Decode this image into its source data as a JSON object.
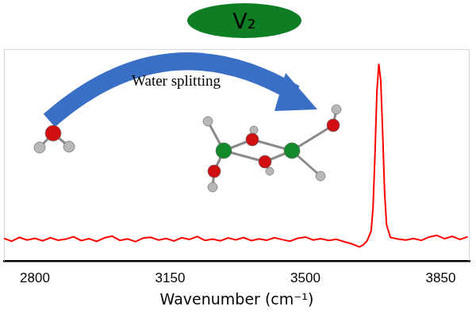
{
  "chart_data": {
    "type": "line",
    "xlabel": "Wavenumber (cm⁻¹)",
    "annotations": [
      "V₂",
      "Water splitting"
    ],
    "x": [
      2720,
      2740,
      2760,
      2780,
      2800,
      2820,
      2840,
      2860,
      2880,
      2900,
      2920,
      2940,
      2960,
      2980,
      3000,
      3020,
      3040,
      3060,
      3080,
      3100,
      3120,
      3140,
      3160,
      3180,
      3200,
      3220,
      3240,
      3260,
      3280,
      3300,
      3320,
      3340,
      3360,
      3380,
      3400,
      3420,
      3440,
      3460,
      3480,
      3500,
      3520,
      3540,
      3560,
      3580,
      3600,
      3620,
      3640,
      3650,
      3660,
      3670,
      3675,
      3680,
      3685,
      3690,
      3695,
      3700,
      3705,
      3710,
      3720,
      3740,
      3760,
      3780,
      3800,
      3820,
      3840,
      3860,
      3880,
      3900,
      3920
    ],
    "values": [
      10.5,
      9.2,
      11.0,
      9.8,
      10.6,
      9.4,
      10.9,
      9.7,
      10.2,
      11.3,
      9.5,
      10.4,
      9.1,
      10.8,
      11.6,
      9.6,
      10.3,
      9.0,
      10.7,
      11.1,
      9.8,
      10.5,
      9.3,
      10.9,
      10.1,
      11.4,
      9.6,
      10.2,
      9.4,
      10.8,
      9.9,
      11.0,
      9.5,
      10.3,
      9.7,
      10.9,
      10.0,
      9.2,
      10.6,
      11.2,
      9.8,
      10.4,
      9.6,
      10.1,
      9.0,
      8.0,
      6.5,
      7.5,
      9.5,
      14,
      25,
      50,
      80,
      93,
      85,
      60,
      32,
      17,
      11,
      10.2,
      9.8,
      10.5,
      9.6,
      11.2,
      12.0,
      10.4,
      11.5,
      10.1,
      11.3
    ],
    "color": "#ff0000",
    "xlim": [
      2720,
      3925
    ],
    "xticks": [
      2800,
      3150,
      3500,
      3850
    ],
    "ylim": [
      0,
      100
    ],
    "tick_labels": "x",
    "grid": false
  }
}
